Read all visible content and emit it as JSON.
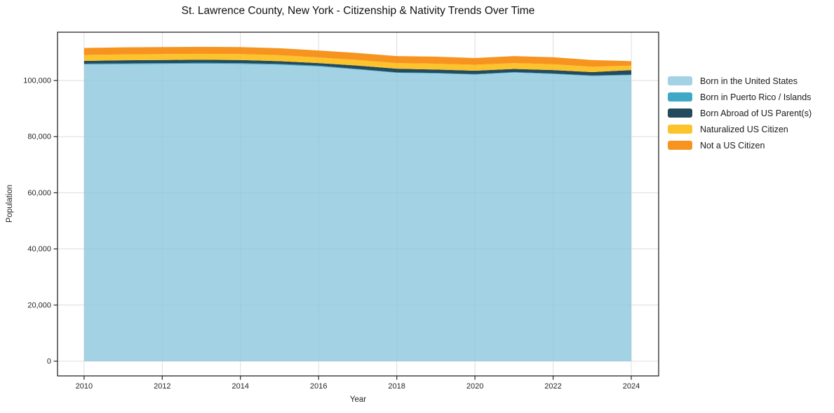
{
  "chart_data": {
    "type": "area",
    "stacked": true,
    "title": "St. Lawrence County, New York - Citizenship & Nativity Trends Over Time",
    "xlabel": "Year",
    "ylabel": "Population",
    "x": [
      2010,
      2011,
      2012,
      2013,
      2014,
      2015,
      2016,
      2017,
      2018,
      2019,
      2020,
      2021,
      2022,
      2023,
      2024
    ],
    "series": [
      {
        "name": "Born in the United States",
        "color": "#a3d2e5",
        "values": [
          105700,
          105800,
          105900,
          106000,
          105900,
          105600,
          105000,
          103900,
          102700,
          102500,
          102100,
          102800,
          102300,
          101600,
          101900
        ]
      },
      {
        "name": "Born in Puerto Rico / Islands",
        "color": "#3fa8c6",
        "values": [
          300,
          300,
          300,
          300,
          300,
          300,
          300,
          200,
          200,
          200,
          200,
          200,
          200,
          200,
          200
        ]
      },
      {
        "name": "Born Abroad of US Parent(s)",
        "color": "#234a5d",
        "values": [
          1000,
          1100,
          1100,
          1100,
          1100,
          1000,
          900,
          1200,
          1300,
          1200,
          1200,
          1100,
          1200,
          1200,
          1600
        ]
      },
      {
        "name": "Naturalized US Citizen",
        "color": "#fcc32d",
        "values": [
          2100,
          2100,
          2100,
          2100,
          2100,
          2100,
          2000,
          2000,
          2000,
          2100,
          2100,
          2100,
          2100,
          1900,
          1600
        ]
      },
      {
        "name": "Not a US Citizen",
        "color": "#f79420",
        "values": [
          2500,
          2500,
          2500,
          2500,
          2500,
          2500,
          2500,
          2500,
          2500,
          2500,
          2400,
          2500,
          2500,
          2400,
          1600
        ]
      }
    ],
    "x_ticks": [
      2010,
      2012,
      2014,
      2016,
      2018,
      2020,
      2022,
      2024
    ],
    "x_tick_labels": [
      "2010",
      "2012",
      "2014",
      "2016",
      "2018",
      "2020",
      "2022",
      "2024"
    ],
    "y_ticks": [
      0,
      20000,
      40000,
      60000,
      80000,
      100000
    ],
    "y_tick_labels": [
      "0",
      "20,000",
      "40,000",
      "60,000",
      "80,000",
      "100,000"
    ],
    "xlim": [
      2009.32,
      2024.7
    ],
    "ylim": [
      -5237,
      117207
    ],
    "grid": true,
    "legend_position": "right",
    "grid_color": "#e7e7e7",
    "axis_color": "#262626"
  }
}
